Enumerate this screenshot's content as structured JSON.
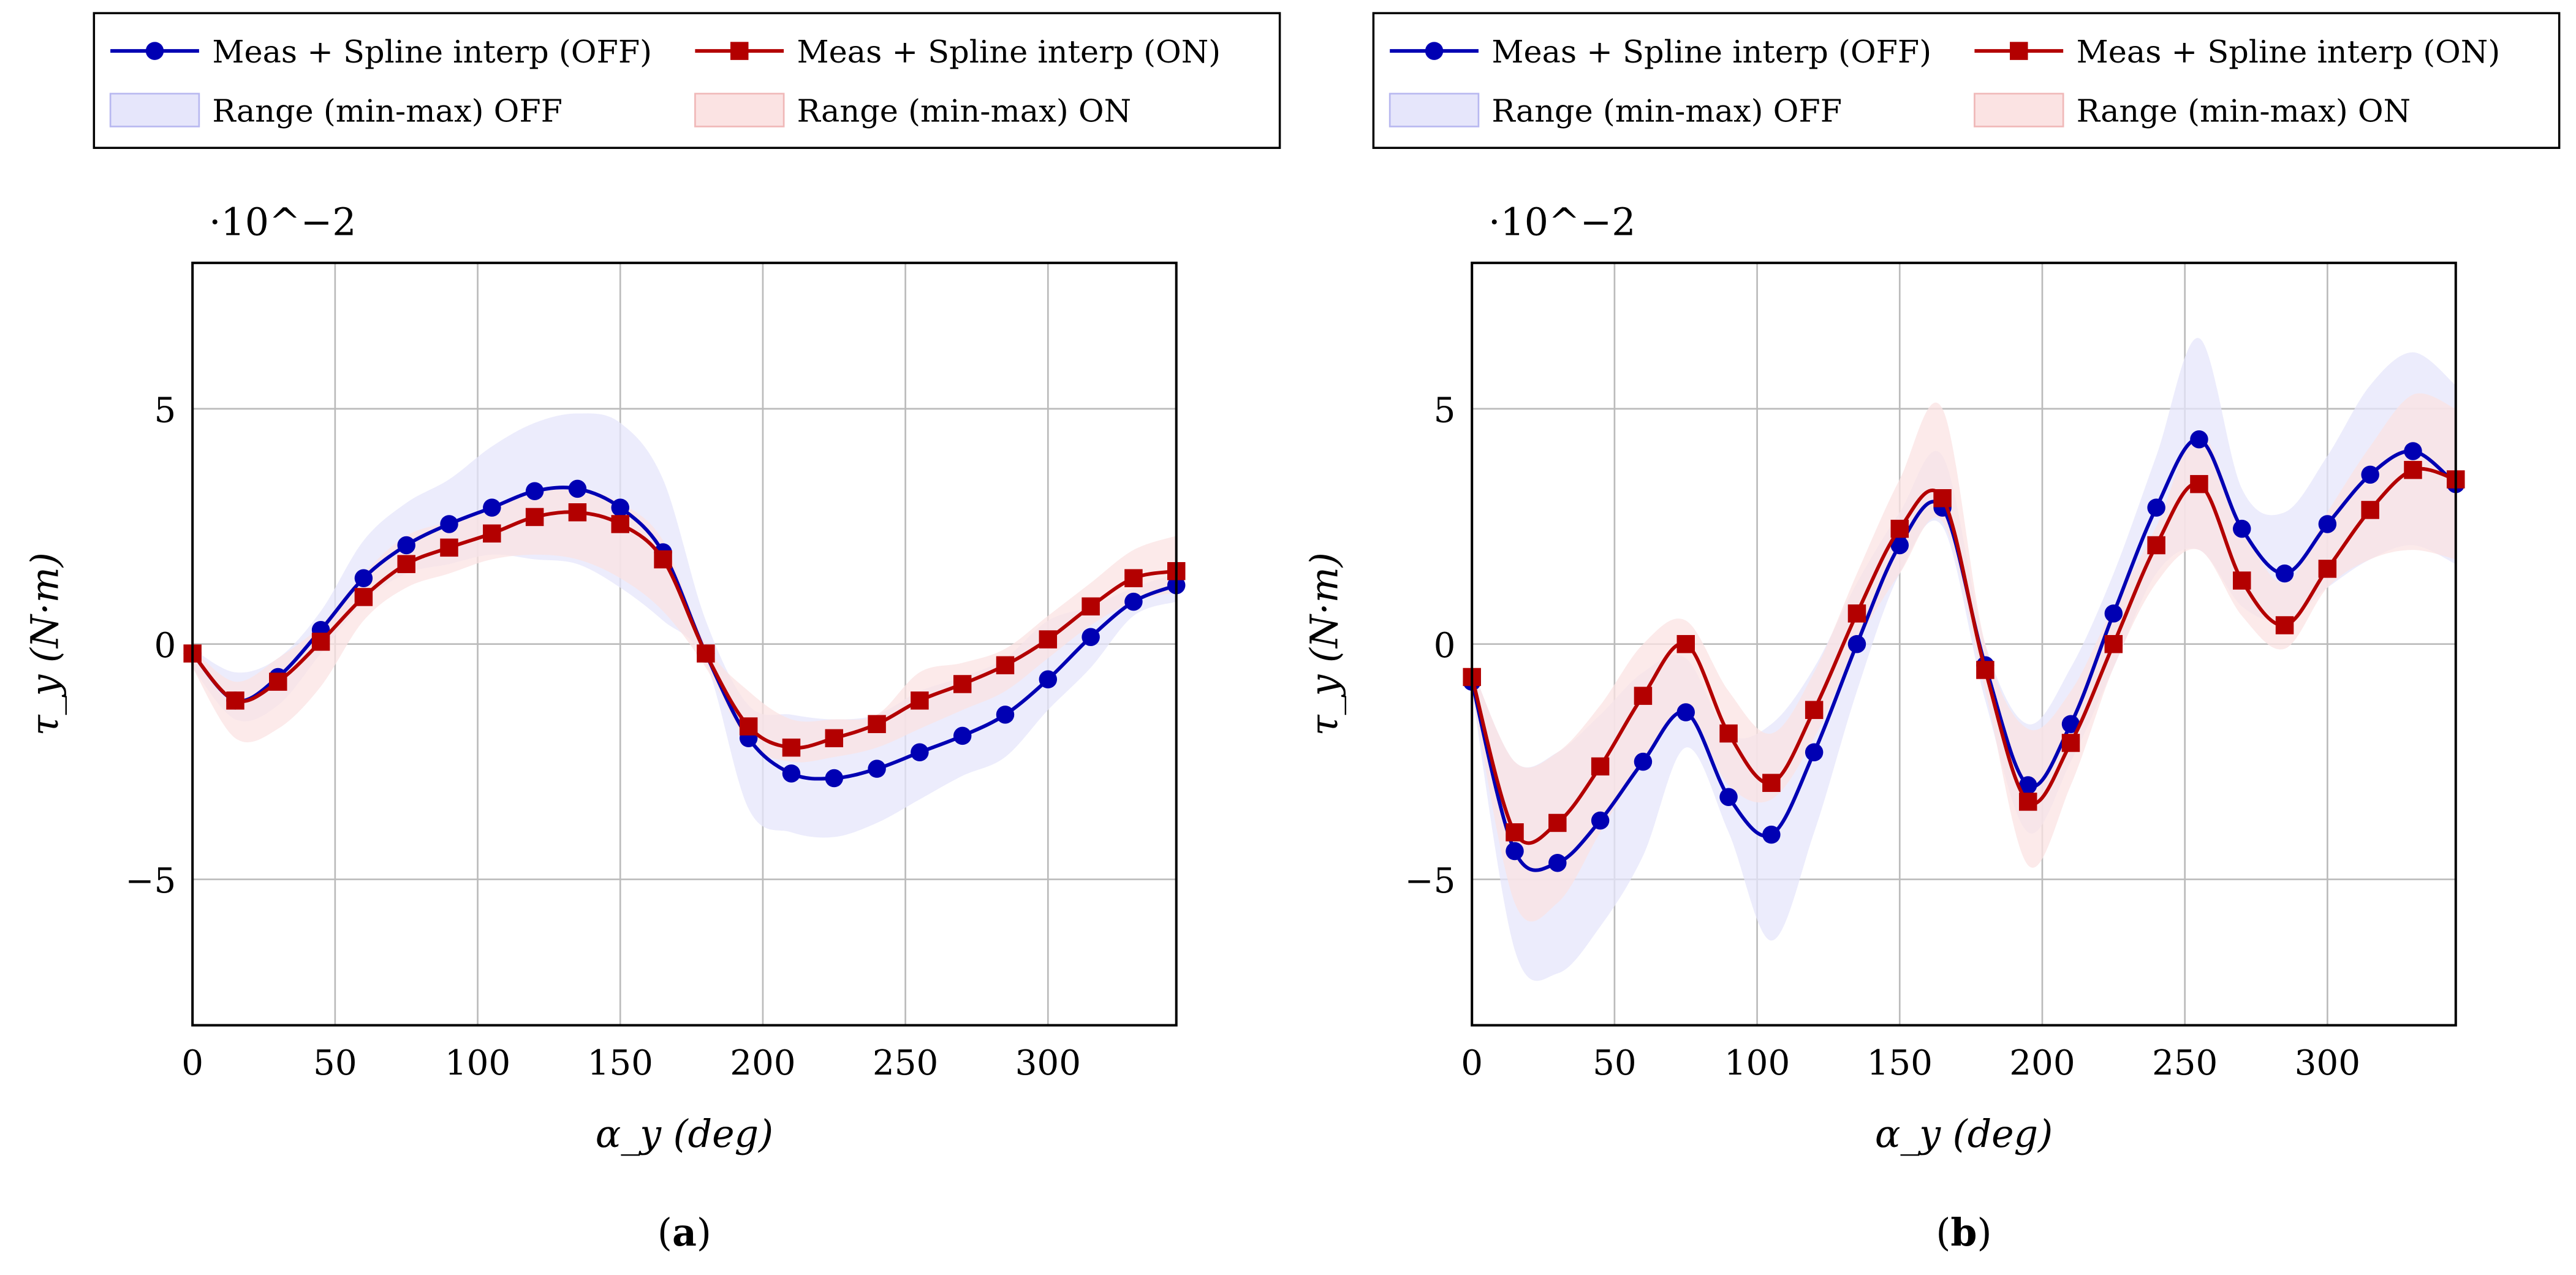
{
  "colors": {
    "off": "#0000b3",
    "on": "#b30000",
    "off_fill": "#e6e6fb",
    "on_fill": "#fbe3e3"
  },
  "chart_data": [
    {
      "type": "line",
      "caption": "a",
      "xlabel": "α_y (deg)",
      "ylabel": "τ_y (N·m)",
      "y_scale_label": "·10^−2",
      "xlim": [
        0,
        345
      ],
      "ylim": [
        -8.1,
        8.1
      ],
      "grid": true,
      "xticks": [
        0,
        50,
        100,
        150,
        200,
        250,
        300
      ],
      "yticks": [
        -5,
        0,
        5
      ],
      "legend": {
        "placement": "top",
        "entries": [
          "Meas + Spline interp (OFF)",
          "Meas + Spline interp (ON)",
          "Range (min-max) OFF",
          "Range (min-max) ON"
        ]
      },
      "x": [
        0,
        15,
        30,
        45,
        60,
        75,
        90,
        105,
        120,
        135,
        150,
        165,
        180,
        195,
        210,
        225,
        240,
        255,
        270,
        285,
        300,
        315,
        330,
        345
      ],
      "series": [
        {
          "name": "Meas + Spline interp (OFF)",
          "values": [
            -0.2,
            -1.2,
            -0.7,
            0.3,
            1.4,
            2.1,
            2.55,
            2.9,
            3.25,
            3.3,
            2.9,
            1.95,
            -0.2,
            -2.0,
            -2.75,
            -2.85,
            -2.65,
            -2.3,
            -1.95,
            -1.5,
            -0.75,
            0.15,
            0.9,
            1.25
          ]
        },
        {
          "name": "Meas + Spline interp (ON)",
          "values": [
            -0.2,
            -1.2,
            -0.8,
            0.05,
            1.0,
            1.7,
            2.05,
            2.35,
            2.7,
            2.8,
            2.55,
            1.8,
            -0.2,
            -1.75,
            -2.2,
            -2.0,
            -1.7,
            -1.2,
            -0.85,
            -0.45,
            0.1,
            0.8,
            1.4,
            1.55
          ]
        }
      ],
      "ranges": [
        {
          "name": "Range (min-max) OFF",
          "max": [
            -0.1,
            -0.6,
            -0.3,
            0.7,
            2.2,
            3.0,
            3.5,
            4.2,
            4.7,
            4.9,
            4.7,
            3.5,
            0.5,
            -1.3,
            -1.5,
            -1.6,
            -1.5,
            -1.0,
            -0.7,
            -0.3,
            0.5,
            0.8,
            1.2,
            1.5
          ],
          "min": [
            -0.5,
            -1.6,
            -1.3,
            -0.2,
            0.9,
            1.5,
            1.7,
            1.9,
            1.8,
            1.7,
            1.2,
            0.5,
            -0.4,
            -3.5,
            -4.0,
            -4.1,
            -3.8,
            -3.3,
            -2.8,
            -2.4,
            -1.4,
            -0.5,
            0.6,
            0.9
          ]
        },
        {
          "name": "Range (min-max) ON",
          "max": [
            -0.1,
            -0.8,
            -0.3,
            0.4,
            1.5,
            2.3,
            2.6,
            2.9,
            3.2,
            3.3,
            3.0,
            2.2,
            0.0,
            -1.0,
            -1.6,
            -1.6,
            -1.5,
            -0.6,
            -0.4,
            -0.1,
            0.6,
            1.3,
            2.0,
            2.3
          ],
          "min": [
            -0.5,
            -2.0,
            -1.8,
            -0.9,
            0.5,
            1.2,
            1.5,
            1.8,
            1.9,
            1.8,
            1.4,
            0.7,
            -0.5,
            -2.1,
            -2.5,
            -2.4,
            -2.2,
            -1.8,
            -1.4,
            -1.0,
            -0.3,
            0.4,
            0.9,
            1.1
          ]
        }
      ]
    },
    {
      "type": "line",
      "caption": "b",
      "xlabel": "α_y (deg)",
      "ylabel": "τ_y (N·m)",
      "y_scale_label": "·10^−2",
      "xlim": [
        0,
        345
      ],
      "ylim": [
        -8.1,
        8.1
      ],
      "grid": true,
      "xticks": [
        0,
        50,
        100,
        150,
        200,
        250,
        300
      ],
      "yticks": [
        -5,
        0,
        5
      ],
      "legend": {
        "placement": "top",
        "entries": [
          "Meas + Spline interp (OFF)",
          "Meas + Spline interp (ON)",
          "Range (min-max) OFF",
          "Range (min-max) ON"
        ]
      },
      "x": [
        0,
        15,
        30,
        45,
        60,
        75,
        90,
        105,
        120,
        135,
        150,
        165,
        180,
        195,
        210,
        225,
        240,
        255,
        270,
        285,
        300,
        315,
        330,
        345
      ],
      "series": [
        {
          "name": "Meas + Spline interp (OFF)",
          "values": [
            -0.8,
            -4.4,
            -4.65,
            -3.75,
            -2.5,
            -1.45,
            -3.25,
            -4.05,
            -2.3,
            0.0,
            2.1,
            2.9,
            -0.45,
            -3.0,
            -1.7,
            0.65,
            2.9,
            4.35,
            2.45,
            1.5,
            2.55,
            3.6,
            4.1,
            3.4
          ]
        },
        {
          "name": "Meas + Spline interp (ON)",
          "values": [
            -0.7,
            -4.0,
            -3.8,
            -2.6,
            -1.1,
            0.0,
            -1.9,
            -2.95,
            -1.4,
            0.65,
            2.45,
            3.1,
            -0.55,
            -3.35,
            -2.1,
            0.0,
            2.1,
            3.4,
            1.35,
            0.4,
            1.6,
            2.85,
            3.7,
            3.5
          ]
        }
      ],
      "ranges": [
        {
          "name": "Range (min-max) OFF",
          "max": [
            -0.5,
            -2.5,
            -2.3,
            -1.5,
            -0.6,
            -0.3,
            -1.9,
            -1.7,
            -0.5,
            1.3,
            2.8,
            4.0,
            0.0,
            -1.7,
            -0.5,
            1.5,
            4.0,
            6.5,
            3.3,
            2.8,
            4.0,
            5.5,
            6.2,
            5.5
          ],
          "min": [
            -1.0,
            -6.5,
            -7.0,
            -6.0,
            -4.5,
            -2.2,
            -4.0,
            -6.3,
            -4.0,
            -1.0,
            1.5,
            2.5,
            -1.2,
            -4.0,
            -2.5,
            -0.5,
            1.5,
            2.0,
            0.8,
            0.5,
            1.2,
            1.8,
            2.1,
            1.7
          ]
        },
        {
          "name": "Range (min-max) ON",
          "max": [
            -0.5,
            -2.5,
            -2.3,
            -1.3,
            0.0,
            0.5,
            -1.0,
            -1.9,
            -0.6,
            1.5,
            3.5,
            5.0,
            0.0,
            -1.8,
            -1.0,
            0.8,
            2.5,
            4.5,
            2.5,
            1.3,
            2.8,
            4.2,
            5.3,
            5.0
          ],
          "min": [
            -1.0,
            -5.5,
            -5.5,
            -4.0,
            -2.5,
            -1.5,
            -3.0,
            -3.3,
            -2.0,
            0.0,
            1.5,
            2.6,
            -1.0,
            -4.7,
            -3.0,
            -0.5,
            1.3,
            2.0,
            0.6,
            -0.1,
            1.2,
            1.8,
            2.0,
            1.8
          ]
        }
      ]
    }
  ]
}
